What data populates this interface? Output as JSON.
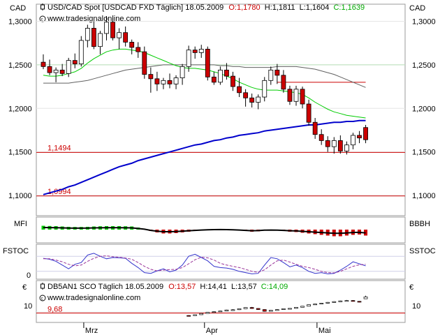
{
  "header": {
    "currency_left": "CAD",
    "currency_right": "CAD",
    "title": "USD/CAD Spot [USDCAD FXD  Täglich] 18.05.2009",
    "ohlc_o": "O:1,1780",
    "ohlc_h": "H:1,1811",
    "ohlc_l": "L:1,1604",
    "ohlc_c": "C:1,1639",
    "watermark": "www.tradesignalonline.com"
  },
  "ticks_main": [
    "1,3000",
    "1,2500",
    "1,2000",
    "1,1500",
    "1,1000"
  ],
  "hlines": [
    "1,1494",
    "1,0994"
  ],
  "panels": {
    "mfi_left": "MFI",
    "mfi_right": "BBBH",
    "fstoc_left": "FSTOC",
    "fstoc_right": "SSTOC",
    "fstoc_zero": "0"
  },
  "lower": {
    "eur_left": "€",
    "eur_right": "€",
    "title": "DB5AN1 SCO Täglich  18.05.2009",
    "ohlc_o": "O:13,57",
    "ohlc_h": "H:14,41",
    "ohlc_l": "L:13,57",
    "ohlc_c": "C:14,09",
    "watermark": "www.tradesignalonline.com",
    "tick_left": "10",
    "tick_right": "10",
    "hline": "9,68"
  },
  "xaxis": [
    "Mrz",
    "Apr",
    "Mai"
  ],
  "colors": {
    "up_candle": "#ffffff",
    "down_candle": "#cc0000",
    "ma_short": "#00cc00",
    "ma_long": "#606060",
    "ma_trend": "#0000cc",
    "hline": "#cc0000",
    "fstoc": "#3333cc",
    "sstoc": "#993399",
    "bbbh_up": "#00cc00",
    "bbbh_down": "#cc0000"
  },
  "chart_data": {
    "type": "candlestick",
    "ylim": [
      1.08,
      1.31
    ],
    "candles": [
      [
        1.253,
        1.262,
        1.245,
        1.248
      ],
      [
        1.248,
        1.256,
        1.238,
        1.241
      ],
      [
        1.241,
        1.247,
        1.23,
        1.244
      ],
      [
        1.244,
        1.251,
        1.237,
        1.24
      ],
      [
        1.24,
        1.258,
        1.236,
        1.255
      ],
      [
        1.255,
        1.263,
        1.246,
        1.251
      ],
      [
        1.251,
        1.283,
        1.248,
        1.278
      ],
      [
        1.278,
        1.296,
        1.27,
        1.292
      ],
      [
        1.292,
        1.3,
        1.268,
        1.271
      ],
      [
        1.271,
        1.289,
        1.262,
        1.286
      ],
      [
        1.286,
        1.306,
        1.278,
        1.299
      ],
      [
        1.299,
        1.304,
        1.278,
        1.281
      ],
      [
        1.281,
        1.292,
        1.268,
        1.287
      ],
      [
        1.287,
        1.294,
        1.271,
        1.276
      ],
      [
        1.276,
        1.279,
        1.262,
        1.27
      ],
      [
        1.27,
        1.276,
        1.258,
        1.265
      ],
      [
        1.265,
        1.271,
        1.234,
        1.239
      ],
      [
        1.239,
        1.247,
        1.218,
        1.234
      ],
      [
        1.234,
        1.242,
        1.22,
        1.228
      ],
      [
        1.228,
        1.235,
        1.222,
        1.232
      ],
      [
        1.232,
        1.24,
        1.223,
        1.228
      ],
      [
        1.228,
        1.238,
        1.222,
        1.235
      ],
      [
        1.235,
        1.251,
        1.227,
        1.248
      ],
      [
        1.248,
        1.272,
        1.242,
        1.267
      ],
      [
        1.267,
        1.271,
        1.257,
        1.264
      ],
      [
        1.264,
        1.273,
        1.258,
        1.268
      ],
      [
        1.268,
        1.271,
        1.232,
        1.236
      ],
      [
        1.236,
        1.242,
        1.227,
        1.23
      ],
      [
        1.23,
        1.248,
        1.227,
        1.244
      ],
      [
        1.244,
        1.252,
        1.233,
        1.237
      ],
      [
        1.237,
        1.242,
        1.22,
        1.225
      ],
      [
        1.225,
        1.235,
        1.213,
        1.218
      ],
      [
        1.218,
        1.222,
        1.202,
        1.212
      ],
      [
        1.212,
        1.217,
        1.201,
        1.207
      ],
      [
        1.207,
        1.216,
        1.199,
        1.213
      ],
      [
        1.213,
        1.236,
        1.208,
        1.232
      ],
      [
        1.232,
        1.248,
        1.227,
        1.244
      ],
      [
        1.244,
        1.251,
        1.228,
        1.238
      ],
      [
        1.238,
        1.244,
        1.218,
        1.222
      ],
      [
        1.222,
        1.226,
        1.204,
        1.208
      ],
      [
        1.208,
        1.226,
        1.203,
        1.222
      ],
      [
        1.222,
        1.225,
        1.2,
        1.205
      ],
      [
        1.205,
        1.21,
        1.18,
        1.184
      ],
      [
        1.184,
        1.189,
        1.165,
        1.17
      ],
      [
        1.17,
        1.176,
        1.158,
        1.163
      ],
      [
        1.163,
        1.168,
        1.15,
        1.156
      ],
      [
        1.156,
        1.167,
        1.148,
        1.163
      ],
      [
        1.163,
        1.169,
        1.148,
        1.151
      ],
      [
        1.151,
        1.162,
        1.147,
        1.158
      ],
      [
        1.158,
        1.172,
        1.153,
        1.169
      ],
      [
        1.169,
        1.174,
        1.16,
        1.166
      ],
      [
        1.178,
        1.181,
        1.16,
        1.164
      ]
    ],
    "ma_short": [
      1.238,
      1.237,
      1.237,
      1.238,
      1.24,
      1.242,
      1.246,
      1.252,
      1.257,
      1.261,
      1.265,
      1.267,
      1.268,
      1.268,
      1.267,
      1.266,
      1.264,
      1.261,
      1.258,
      1.255,
      1.252,
      1.249,
      1.247,
      1.246,
      1.246,
      1.245,
      1.244,
      1.242,
      1.24,
      1.237,
      1.234,
      1.23,
      1.227,
      1.224,
      1.222,
      1.221,
      1.221,
      1.221,
      1.22,
      1.219,
      1.218,
      1.216,
      1.212,
      1.207,
      1.203,
      1.199,
      1.196,
      1.194,
      1.192,
      1.191,
      1.19,
      1.189
    ],
    "ma_long": [
      1.229,
      1.229,
      1.229,
      1.229,
      1.229,
      1.23,
      1.231,
      1.232,
      1.234,
      1.236,
      1.238,
      1.24,
      1.242,
      1.244,
      1.245,
      1.246,
      1.247,
      1.248,
      1.249,
      1.25,
      1.25,
      1.25,
      1.25,
      1.25,
      1.25,
      1.25,
      1.25,
      1.25,
      1.249,
      1.249,
      1.248,
      1.248,
      1.247,
      1.247,
      1.247,
      1.247,
      1.247,
      1.248,
      1.248,
      1.248,
      1.248,
      1.247,
      1.246,
      1.245,
      1.243,
      1.241,
      1.239,
      1.236,
      1.233,
      1.23,
      1.227,
      1.224
    ],
    "ma_trend": [
      1.101,
      1.103,
      1.105,
      1.107,
      1.11,
      1.112,
      1.115,
      1.118,
      1.121,
      1.124,
      1.127,
      1.13,
      1.133,
      1.135,
      1.137,
      1.14,
      1.142,
      1.144,
      1.146,
      1.148,
      1.15,
      1.152,
      1.154,
      1.156,
      1.158,
      1.159,
      1.161,
      1.163,
      1.164,
      1.166,
      1.167,
      1.169,
      1.17,
      1.171,
      1.172,
      1.174,
      1.175,
      1.176,
      1.177,
      1.178,
      1.179,
      1.18,
      1.181,
      1.181,
      1.182,
      1.183,
      1.184,
      1.184,
      1.185,
      1.185,
      1.186,
      1.186
    ],
    "resistance": {
      "from": 37,
      "to": 51,
      "value": 1.23
    },
    "mfi": [
      0.55,
      0.52,
      0.5,
      0.45,
      0.4,
      0.38,
      0.38,
      0.4,
      0.45,
      0.48,
      0.5,
      0.5,
      0.5,
      0.48,
      0.45,
      0.3,
      0.1,
      -0.2,
      -0.4,
      -0.55,
      -0.55,
      -0.5,
      -0.4,
      -0.3,
      -0.2,
      -0.1,
      -0.05,
      0.0,
      0.02,
      0.0,
      -0.05,
      -0.1,
      -0.2,
      -0.3,
      -0.25,
      -0.15,
      -0.1,
      -0.12,
      -0.2,
      -0.3,
      -0.35,
      -0.45,
      -0.55,
      -0.65,
      -0.75,
      -0.85,
      -0.95,
      -0.95,
      -0.85,
      -0.75,
      -0.7,
      -0.85
    ],
    "fstoc": [
      72,
      68,
      60,
      45,
      30,
      48,
      55,
      85,
      92,
      80,
      70,
      75,
      74,
      72,
      52,
      35,
      15,
      12,
      22,
      30,
      18,
      25,
      45,
      80,
      88,
      75,
      62,
      40,
      35,
      33,
      28,
      20,
      15,
      10,
      12,
      45,
      75,
      70,
      55,
      38,
      45,
      35,
      20,
      12,
      15,
      10,
      12,
      25,
      40,
      58,
      50,
      42
    ],
    "sstoc": [
      70,
      70,
      65,
      58,
      48,
      42,
      45,
      60,
      72,
      80,
      82,
      78,
      76,
      73,
      68,
      55,
      40,
      28,
      22,
      25,
      27,
      28,
      35,
      50,
      66,
      76,
      74,
      65,
      52,
      45,
      40,
      35,
      28,
      20,
      16,
      26,
      45,
      62,
      65,
      57,
      48,
      40,
      35,
      28,
      20,
      15,
      14,
      20,
      30,
      40,
      46,
      48
    ],
    "lower_ylim": [
      7.5,
      15.5
    ],
    "lower_start": 23,
    "lower_candles": [
      [
        9.02,
        9.1,
        8.94,
        9.0
      ],
      [
        9.08,
        9.27,
        9.02,
        9.22
      ],
      [
        9.22,
        9.64,
        9.19,
        9.58
      ],
      [
        9.58,
        9.9,
        9.52,
        9.85
      ],
      [
        9.85,
        10.12,
        9.8,
        10.05
      ],
      [
        10.05,
        10.3,
        9.98,
        10.24
      ],
      [
        10.24,
        10.6,
        10.17,
        10.52
      ],
      [
        10.52,
        10.74,
        10.38,
        10.59
      ],
      [
        10.59,
        10.93,
        10.52,
        10.86
      ],
      [
        10.86,
        11.27,
        10.82,
        11.2
      ],
      [
        11.2,
        11.34,
        10.87,
        10.93
      ],
      [
        10.93,
        11.0,
        10.55,
        10.64
      ],
      [
        10.64,
        10.72,
        10.06,
        10.16
      ],
      [
        10.16,
        10.52,
        10.1,
        10.44
      ],
      [
        10.44,
        10.72,
        10.38,
        10.62
      ],
      [
        10.62,
        10.9,
        10.55,
        10.86
      ],
      [
        10.86,
        11.03,
        10.78,
        10.96
      ],
      [
        10.96,
        11.3,
        10.9,
        11.25
      ],
      [
        11.25,
        11.62,
        11.2,
        11.55
      ],
      [
        11.55,
        12.05,
        11.5,
        11.98
      ],
      [
        11.98,
        12.22,
        11.9,
        12.15
      ],
      [
        12.15,
        12.46,
        12.1,
        12.38
      ],
      [
        12.38,
        12.68,
        12.3,
        12.6
      ],
      [
        12.6,
        12.9,
        12.52,
        12.8
      ],
      [
        12.8,
        13.09,
        12.72,
        13.0
      ],
      [
        13.0,
        13.24,
        12.88,
        13.1
      ],
      [
        13.1,
        13.2,
        12.83,
        12.88
      ],
      [
        12.88,
        12.96,
        12.6,
        12.66
      ],
      [
        13.57,
        14.41,
        13.57,
        14.09
      ]
    ]
  }
}
